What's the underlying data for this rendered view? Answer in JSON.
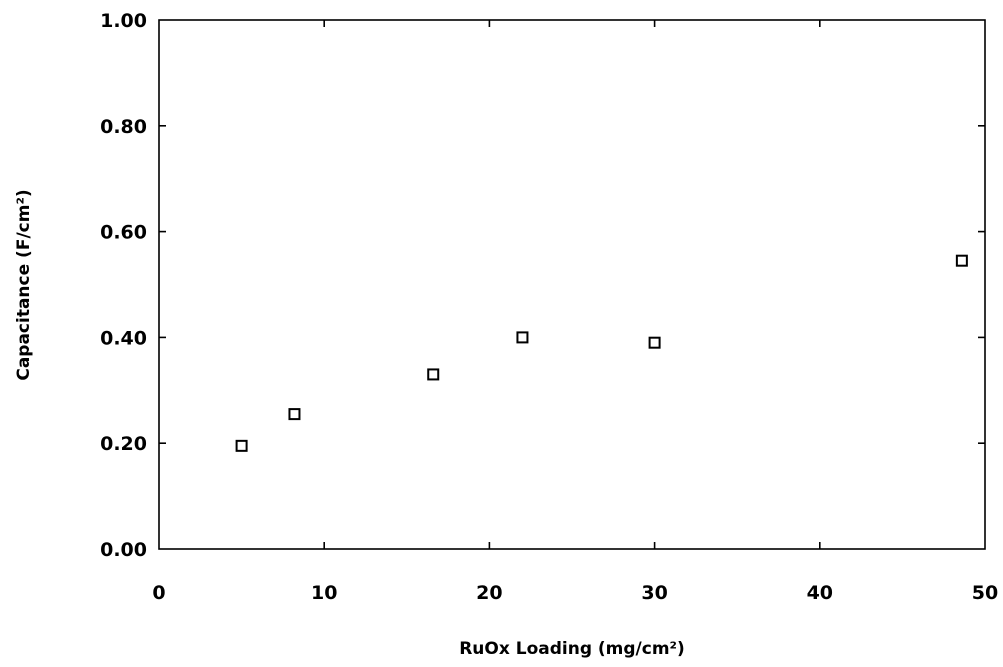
{
  "chart_data": {
    "type": "scatter",
    "xlabel": "RuOx Loading (mg/cm²)",
    "ylabel": "Capacitance (F/cm²)",
    "xlim": [
      0,
      50
    ],
    "ylim": [
      0,
      1
    ],
    "x_ticks": [
      "0",
      "10",
      "20",
      "30",
      "40",
      "50"
    ],
    "y_ticks": [
      "0.00",
      "0.20",
      "0.40",
      "0.60",
      "0.80",
      "1.00"
    ],
    "grid": false,
    "marker": "open-square",
    "points": [
      {
        "x": 5.0,
        "y": 0.195
      },
      {
        "x": 8.2,
        "y": 0.255
      },
      {
        "x": 16.6,
        "y": 0.33
      },
      {
        "x": 22.0,
        "y": 0.4
      },
      {
        "x": 30.0,
        "y": 0.39
      },
      {
        "x": 48.6,
        "y": 0.545
      }
    ]
  }
}
